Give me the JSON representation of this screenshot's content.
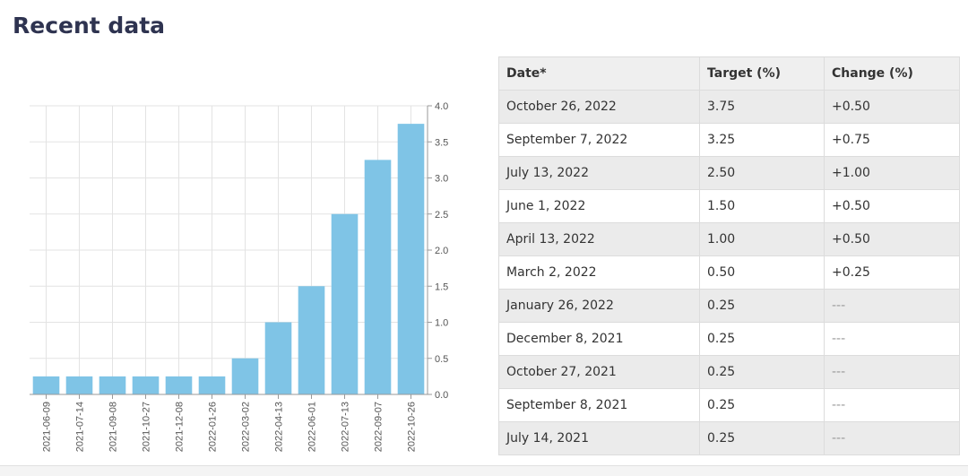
{
  "header": {
    "title": "Recent data"
  },
  "chart_data": {
    "type": "bar",
    "categories": [
      "2021-06-09",
      "2021-07-14",
      "2021-09-08",
      "2021-10-27",
      "2021-12-08",
      "2022-01-26",
      "2022-03-02",
      "2022-04-13",
      "2022-06-01",
      "2022-07-13",
      "2022-09-07",
      "2022-10-26"
    ],
    "values": [
      0.25,
      0.25,
      0.25,
      0.25,
      0.25,
      0.25,
      0.5,
      1.0,
      1.5,
      2.5,
      3.25,
      3.75
    ],
    "color": "#7fc4e6",
    "ylim": [
      0,
      4
    ],
    "yticks": [
      {
        "value": 0,
        "label": "0.0"
      },
      {
        "value": 0.5,
        "label": "0.5"
      },
      {
        "value": 1,
        "label": "1.0"
      },
      {
        "value": 1.5,
        "label": "1.5"
      },
      {
        "value": 2,
        "label": "2.0"
      },
      {
        "value": 2.5,
        "label": "2.5"
      },
      {
        "value": 3,
        "label": "3.0"
      },
      {
        "value": 3.5,
        "label": "3.5"
      },
      {
        "value": 4,
        "label": "4.0"
      }
    ],
    "grid": true
  },
  "table": {
    "headers": [
      "Date*",
      "Target (%)",
      "Change (%)"
    ],
    "rows": [
      [
        "October 26, 2022",
        "3.75",
        "+0.50"
      ],
      [
        "September 7, 2022",
        "3.25",
        "+0.75"
      ],
      [
        "July 13, 2022",
        "2.50",
        "+1.00"
      ],
      [
        "June 1, 2022",
        "1.50",
        "+0.50"
      ],
      [
        "April 13, 2022",
        "1.00",
        "+0.50"
      ],
      [
        "March 2, 2022",
        "0.50",
        "+0.25"
      ],
      [
        "January 26, 2022",
        "0.25",
        "---"
      ],
      [
        "December 8, 2021",
        "0.25",
        "---"
      ],
      [
        "October 27, 2021",
        "0.25",
        "---"
      ],
      [
        "September 8, 2021",
        "0.25",
        "---"
      ],
      [
        "July 14, 2021",
        "0.25",
        "---"
      ]
    ]
  }
}
